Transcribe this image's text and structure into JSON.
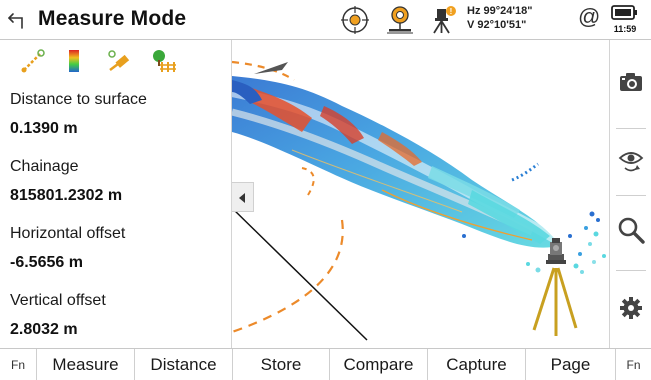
{
  "header": {
    "title": "Measure Mode",
    "hz": "Hz 99°24'18\"",
    "v": "V  92°10'51\"",
    "at_symbol": "@",
    "battery_time": "11:59",
    "status_badge_color": "#f0a020"
  },
  "left_panel": {
    "tools": [
      "measure-tool-icon",
      "color-scale-icon",
      "color-brush-icon",
      "tree-fence-icon"
    ],
    "fields": [
      {
        "label": "Distance to surface",
        "value": "0.1390 m"
      },
      {
        "label": "Chainage",
        "value": "815801.2302 m"
      },
      {
        "label": "Horizontal offset",
        "value": "-6.5656 m"
      },
      {
        "label": "Vertical offset",
        "value": "2.8032 m"
      }
    ]
  },
  "right_bar": {
    "buttons": [
      "camera-icon",
      "eye-refresh-icon",
      "search-icon",
      "gear-icon"
    ]
  },
  "fn_bar": {
    "fn_left": "Fn",
    "keys": [
      "Measure",
      "Distance",
      "Store",
      "Compare",
      "Capture",
      "Page"
    ],
    "fn_right": "Fn"
  },
  "colors": {
    "accent": "#e8a01e",
    "dashed_arc": "#ec8a2a",
    "cloud_blue": "#2a7fd4",
    "cloud_cyan": "#5ad8e0",
    "cloud_red": "#e8502a"
  }
}
